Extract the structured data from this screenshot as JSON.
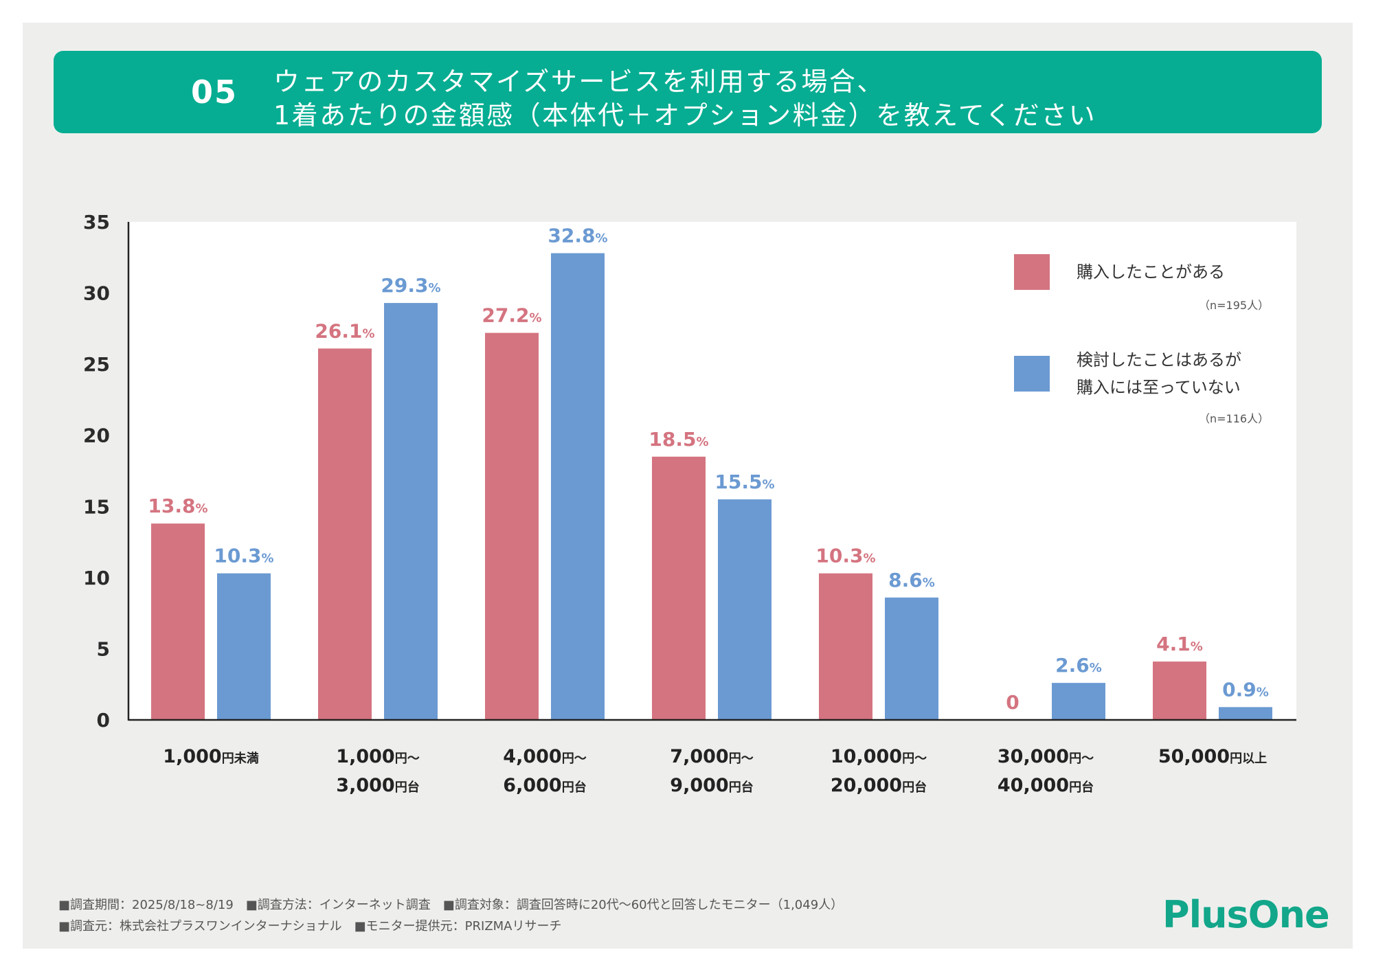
{
  "title": {
    "number": "05",
    "line1": "ウェアのカスタマイズサービスを利用する場合、",
    "line2": "1着あたりの金額感（本体代＋オプション料金）を教えてください"
  },
  "chart_data": {
    "type": "bar",
    "title": "ウェアのカスタマイズサービスを利用する場合、1着あたりの金額感（本体代＋オプション料金）を教えてください",
    "categories": [
      {
        "line1": "1,000",
        "suffix1": "円未満",
        "line2": "",
        "suffix2": ""
      },
      {
        "line1": "1,000",
        "suffix1": "円～",
        "line2": "3,000",
        "suffix2": "円台"
      },
      {
        "line1": "4,000",
        "suffix1": "円～",
        "line2": "6,000",
        "suffix2": "円台"
      },
      {
        "line1": "7,000",
        "suffix1": "円～",
        "line2": "9,000",
        "suffix2": "円台"
      },
      {
        "line1": "10,000",
        "suffix1": "円～",
        "line2": "20,000",
        "suffix2": "円台"
      },
      {
        "line1": "30,000",
        "suffix1": "円～",
        "line2": "40,000",
        "suffix2": "円台"
      },
      {
        "line1": "50,000",
        "suffix1": "円以上",
        "line2": "",
        "suffix2": ""
      }
    ],
    "series": [
      {
        "name": "購入したことがある",
        "n": "（n=195人）",
        "color": "#d47480",
        "values": [
          13.8,
          26.1,
          27.2,
          18.5,
          10.3,
          0,
          4.1
        ],
        "labels": [
          "13.8",
          "26.1",
          "27.2",
          "18.5",
          "10.3",
          "0",
          "4.1"
        ]
      },
      {
        "name": "検討したことはあるが購入には至っていない",
        "name_line1": "検討したことはあるが",
        "name_line2": "購入には至っていない",
        "n": "（n=116人）",
        "color": "#6b9ad2",
        "values": [
          10.3,
          29.3,
          32.8,
          15.5,
          8.6,
          2.6,
          0.9
        ],
        "labels": [
          "10.3",
          "29.3",
          "32.8",
          "15.5",
          "8.6",
          "2.6",
          "0.9"
        ]
      }
    ],
    "percent_sign": "%",
    "ylim": [
      0,
      35
    ],
    "yticks": [
      0,
      5,
      10,
      15,
      20,
      25,
      30,
      35
    ],
    "legend_position": "top-right"
  },
  "footnotes": {
    "line1": "■調査期間：2025/8/18~8/19　■調査方法：インターネット調査　■調査対象：調査回答時に20代～60代と回答したモニター（1,049人）",
    "line2": "■調査元：株式会社プラスワンインターナショナル　■モニター提供元：PRIZMAリサーチ"
  },
  "logo": "PlusOne"
}
